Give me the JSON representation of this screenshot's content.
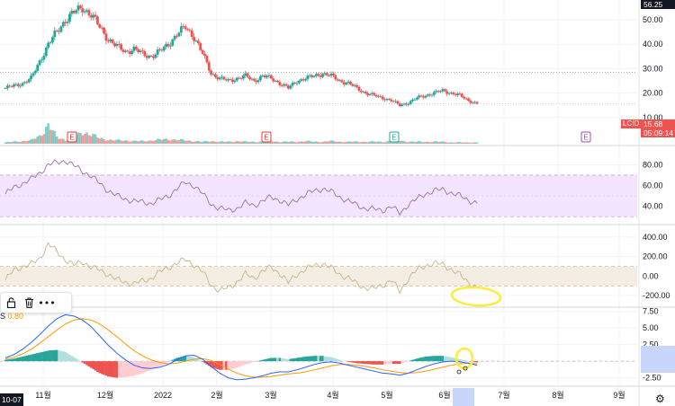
{
  "ticker": "LCID",
  "last_price": "15.68",
  "countdown": "05:09:14",
  "top_price": "56.25",
  "start_date_label": "10-07",
  "earnings_marker": "E",
  "macd_value_label": "S",
  "macd_value": "0.80",
  "toolbar_icons": [
    "lock-icon",
    "trash-icon",
    "more-icon"
  ],
  "toolbar_more_label": "•••",
  "gear_glyph": "⚙",
  "colors": {
    "up": "#26a69a",
    "down": "#ef5350",
    "rsi_band": "#f3e5ff",
    "rsi_line": "#9c6fb0",
    "cci_band": "#f4ede2",
    "cci_line": "#c8b48c",
    "macd_line": "#2962ff",
    "signal_line": "#ff9800",
    "annotation": "#ffeb3b",
    "time_highlight": "#c8d6fb",
    "earnings_red": "#e53935",
    "earnings_green": "#26a69a",
    "earnings_purple": "#ab47bc"
  },
  "chart_data": [
    {
      "type": "candlestick",
      "panel": "price",
      "ylim": [
        0,
        56.25
      ],
      "y_ticks": [
        10,
        20,
        30,
        40,
        50
      ],
      "y_tick_labels": [
        "10.00",
        "20.00",
        "30.00",
        "40.00",
        "50.00"
      ],
      "dotted_level": 28.5,
      "x_labels": [
        "11월",
        "12월",
        "2022",
        "2월",
        "3월",
        "4월",
        "5월",
        "6월",
        "7월",
        "8월",
        "9월"
      ],
      "close_path": [
        22,
        23,
        24,
        26,
        33,
        40,
        45,
        50,
        53,
        55,
        52,
        47,
        42,
        39,
        37,
        38,
        36,
        35,
        37,
        40,
        44,
        47,
        43,
        36,
        28,
        26,
        25,
        26,
        27,
        25,
        27,
        26,
        24,
        22,
        25,
        26,
        27,
        28,
        27,
        25,
        24,
        22,
        20,
        19,
        18,
        17,
        15,
        16,
        18,
        19,
        20,
        21,
        20,
        19,
        17,
        15.68
      ]
    },
    {
      "type": "bar",
      "panel": "volume",
      "values": [
        2,
        3,
        4,
        5,
        12,
        28,
        10,
        6,
        9,
        18,
        14,
        8,
        6,
        5,
        5,
        4,
        4,
        5,
        6,
        7,
        6,
        5,
        4,
        3,
        4,
        3,
        3,
        4,
        3,
        3,
        3,
        4,
        3,
        3,
        3,
        4,
        3,
        3,
        4,
        3,
        3,
        3,
        3,
        3,
        3,
        4,
        5,
        3,
        3,
        3,
        3,
        3,
        2,
        2,
        2,
        2
      ]
    },
    {
      "type": "line",
      "panel": "rsi",
      "name": "",
      "ylim": [
        25,
        95
      ],
      "band": [
        30,
        70
      ],
      "y_ticks": [
        40,
        60,
        80
      ],
      "y_tick_labels": [
        "40.00",
        "60.00",
        "80.00"
      ],
      "values": [
        52,
        58,
        62,
        66,
        72,
        80,
        82,
        84,
        79,
        74,
        69,
        62,
        55,
        50,
        47,
        45,
        44,
        43,
        46,
        50,
        57,
        63,
        60,
        52,
        42,
        38,
        36,
        38,
        43,
        41,
        45,
        49,
        46,
        41,
        47,
        51,
        55,
        57,
        54,
        49,
        45,
        41,
        38,
        37,
        36,
        40,
        33,
        42,
        47,
        52,
        55,
        56,
        53,
        50,
        46,
        43
      ]
    },
    {
      "type": "line",
      "panel": "cci",
      "name": "",
      "ylim": [
        -300,
        500
      ],
      "band": [
        -100,
        100
      ],
      "y_ticks": [
        -200,
        0,
        200,
        400
      ],
      "y_tick_labels": [
        "-200.00",
        "0.00",
        "200.00",
        "400.00"
      ],
      "values": [
        -40,
        60,
        100,
        120,
        180,
        330,
        250,
        170,
        110,
        150,
        90,
        60,
        20,
        -40,
        -60,
        -80,
        -50,
        -20,
        40,
        90,
        130,
        170,
        120,
        40,
        -90,
        -150,
        -120,
        -60,
        20,
        -20,
        50,
        90,
        30,
        -70,
        20,
        70,
        110,
        130,
        80,
        20,
        -20,
        -80,
        -120,
        -130,
        -90,
        -40,
        -160,
        -20,
        60,
        110,
        130,
        120,
        70,
        10,
        -60,
        -120
      ]
    },
    {
      "type": "macd",
      "panel": "macd",
      "ylim": [
        -3.5,
        8
      ],
      "y_ticks": [
        -2.5,
        0,
        2.5,
        5,
        7.5
      ],
      "y_tick_labels": [
        "-2.50",
        "0.00",
        "2.50",
        "5.00",
        "7.50"
      ],
      "macd": [
        0.5,
        1,
        1.8,
        2.8,
        4,
        5.3,
        6.4,
        7,
        6.8,
        6.2,
        5.2,
        3.8,
        2.4,
        1.2,
        0.2,
        -0.6,
        -1,
        -1.1,
        -0.9,
        -0.5,
        0.2,
        0.8,
        0.9,
        0.3,
        -0.8,
        -1.8,
        -2.5,
        -2.8,
        -2.7,
        -2.5,
        -2.2,
        -1.8,
        -1.6,
        -1.6,
        -1.3,
        -0.9,
        -0.5,
        -0.2,
        -0.1,
        -0.3,
        -0.6,
        -0.9,
        -1.2,
        -1.5,
        -1.8,
        -1.9,
        -2.1,
        -1.8,
        -1.3,
        -0.8,
        -0.4,
        -0.1,
        0,
        -0.1,
        -0.3,
        -0.6
      ],
      "signal": [
        0.3,
        0.6,
        1.1,
        1.8,
        2.7,
        3.7,
        4.7,
        5.6,
        6.2,
        6.4,
        6.2,
        5.6,
        4.7,
        3.7,
        2.6,
        1.6,
        0.8,
        0.2,
        -0.2,
        -0.4,
        -0.3,
        0,
        0.3,
        0.4,
        0.1,
        -0.5,
        -1.2,
        -1.8,
        -2.2,
        -2.4,
        -2.4,
        -2.3,
        -2.1,
        -1.9,
        -1.8,
        -1.6,
        -1.3,
        -1,
        -0.7,
        -0.5,
        -0.5,
        -0.6,
        -0.8,
        -1,
        -1.3,
        -1.5,
        -1.7,
        -1.8,
        -1.7,
        -1.5,
        -1.2,
        -0.9,
        -0.6,
        -0.4,
        -0.3,
        -0.4
      ]
    }
  ]
}
